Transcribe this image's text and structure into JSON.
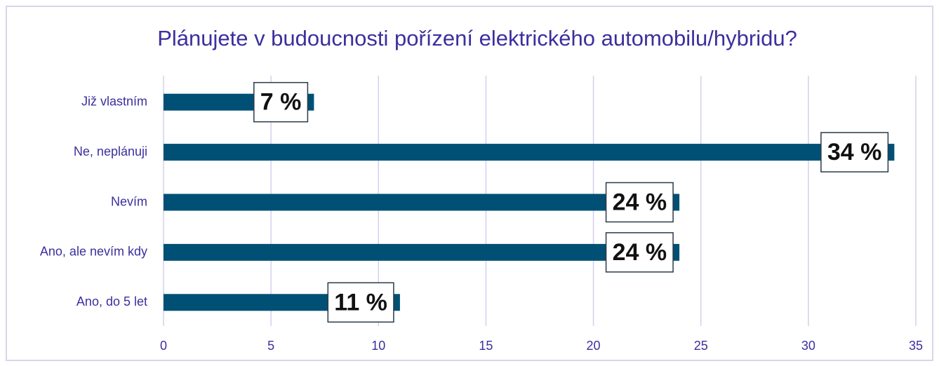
{
  "chart_data": {
    "type": "bar",
    "orientation": "horizontal",
    "title": "Plánujete v budoucnosti pořízení elektrického automobilu/hybridu?",
    "categories": [
      "Již vlastním",
      "Ne, neplánuji",
      "Nevím",
      "Ano, ale nevím kdy",
      "Ano, do 5 let"
    ],
    "values": [
      7,
      34,
      24,
      24,
      11
    ],
    "value_labels": [
      "7 %",
      "34 %",
      "24 %",
      "24 %",
      "11 %"
    ],
    "color": "#005075",
    "xlim": [
      0,
      35
    ],
    "xticks": [
      0,
      5,
      10,
      15,
      20,
      25,
      30,
      35
    ],
    "grid": true
  }
}
